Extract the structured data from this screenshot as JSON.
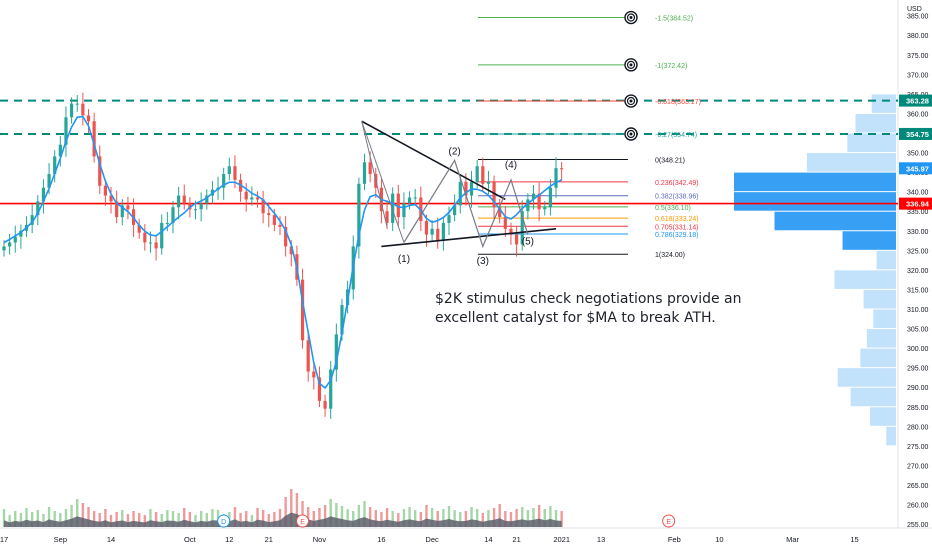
{
  "chart_data": {
    "type": "candlestick",
    "currency": "USD",
    "y_axis": {
      "ylim": [
        254,
        389
      ],
      "ticks": [
        255,
        260,
        265,
        270,
        275,
        280,
        285,
        290,
        295,
        300,
        305,
        310,
        315,
        320,
        325,
        330,
        335,
        340,
        345,
        350,
        355,
        360,
        365,
        370,
        375,
        380,
        385
      ],
      "tick_labels": [
        "255.00",
        "260.00",
        "265.00",
        "270.00",
        "275.00",
        "280.00",
        "285.00",
        "290.00",
        "295.00",
        "300.00",
        "305.00",
        "310.00",
        "315.00",
        "320.00",
        "325.00",
        "330.00",
        "335.00",
        "340.00",
        "345.00",
        "350.00",
        "355.00",
        "360.00",
        "365.00",
        "370.00",
        "375.00",
        "380.00",
        "385.00"
      ]
    },
    "x_axis": {
      "xlim": [
        0,
        158
      ],
      "ticks": [
        {
          "label": "17",
          "t": 0
        },
        {
          "label": "Sep",
          "t": 10
        },
        {
          "label": "14",
          "t": 19
        },
        {
          "label": "Oct",
          "t": 33
        },
        {
          "label": "12",
          "t": 40
        },
        {
          "label": "21",
          "t": 47
        },
        {
          "label": "Nov",
          "t": 56
        },
        {
          "label": "16",
          "t": 67
        },
        {
          "label": "Dec",
          "t": 76
        },
        {
          "label": "14",
          "t": 86
        },
        {
          "label": "21",
          "t": 91
        },
        {
          "label": "2021",
          "t": 99
        },
        {
          "label": "13",
          "t": 106
        },
        {
          "label": "Feb",
          "t": 119
        },
        {
          "label": "10",
          "t": 127
        },
        {
          "label": "Mar",
          "t": 140
        },
        {
          "label": "15",
          "t": 151
        }
      ]
    },
    "price_series": {
      "name": "MA",
      "close": [
        326.0,
        327.0,
        328.5,
        330.0,
        331.5,
        334.0,
        337.5,
        341.0,
        344.5,
        349.0,
        352.0,
        359.0,
        362.5,
        362.5,
        359.5,
        358.0,
        349.0,
        341.5,
        339.0,
        337.5,
        333.5,
        336.5,
        335.5,
        331.5,
        329.5,
        327.0,
        327.0,
        325.5,
        332.0,
        332.0,
        336.0,
        339.0,
        337.0,
        335.5,
        335.5,
        337.0,
        339.0,
        340.5,
        341.0,
        344.5,
        346.5,
        343.0,
        340.0,
        338.0,
        338.5,
        338.0,
        334.5,
        334.0,
        331.5,
        331.0,
        326.0,
        324.0,
        317.5,
        302.0,
        294.0,
        292.5,
        286.5,
        284.5,
        294.5,
        303.5,
        311.0,
        315.0,
        326.0,
        342.0,
        347.5,
        344.5,
        341.0,
        335.0,
        332.0,
        339.5,
        333.5,
        337.0,
        338.5,
        338.5,
        332.5,
        329.0,
        330.5,
        327.5,
        332.0,
        334.0,
        336.5,
        342.5,
        339.0,
        342.5,
        346.5,
        342.0,
        342.5,
        336.0,
        333.5,
        330.5,
        329.0,
        326.5,
        335.0,
        338.0,
        339.5,
        335.5,
        336.0,
        341.0,
        346.0,
        345.97
      ],
      "ma": [
        327.0,
        327.8,
        328.7,
        329.6,
        330.8,
        332.2,
        334.5,
        337.5,
        340.8,
        344.6,
        348.5,
        352.9,
        356.5,
        359.0,
        359.2,
        356.8,
        352.1,
        347.1,
        342.7,
        339.4,
        337.0,
        336.0,
        334.9,
        333.3,
        331.4,
        329.9,
        328.9,
        328.7,
        329.8,
        331.0,
        332.3,
        333.5,
        334.6,
        336.0,
        337.0,
        337.6,
        338.4,
        339.6,
        340.7,
        341.7,
        342.4,
        342.4,
        341.7,
        340.7,
        339.6,
        338.9,
        337.9,
        336.2,
        334.5,
        332.5,
        330.1,
        326.4,
        320.6,
        312.0,
        304.1,
        296.3,
        291.0,
        289.8,
        291.8,
        296.4,
        303.9,
        312.1,
        320.9,
        328.9,
        335.3,
        338.7,
        339.2,
        338.0,
        337.5,
        337.0,
        336.1,
        335.9,
        336.5,
        336.7,
        335.3,
        333.1,
        332.2,
        332.6,
        333.4,
        334.7,
        336.5,
        338.4,
        339.7,
        340.7,
        340.6,
        340.1,
        339.1,
        337.4,
        335.6,
        333.6,
        333.0,
        334.1,
        335.7,
        337.0,
        338.1,
        339.1,
        340.3,
        341.4,
        342.3,
        343.0
      ]
    },
    "volume": {
      "values": [
        18,
        12,
        16,
        14,
        19,
        15,
        17,
        13,
        20,
        16,
        14,
        18,
        22,
        28,
        24,
        20,
        16,
        14,
        18,
        12,
        15,
        17,
        13,
        16,
        14,
        12,
        18,
        15,
        13,
        17,
        16,
        14,
        19,
        15,
        12,
        16,
        14,
        18,
        17,
        13,
        15,
        20,
        14,
        16,
        12,
        19,
        17,
        13,
        15,
        18,
        30,
        38,
        34,
        26,
        20,
        16,
        19,
        22,
        28,
        24,
        21,
        18,
        16,
        22,
        26,
        20,
        17,
        15,
        19,
        16,
        14,
        18,
        20,
        17,
        15,
        22,
        19,
        16,
        18,
        21,
        17,
        15,
        16,
        20,
        18,
        14,
        17,
        19,
        23,
        16,
        15,
        18,
        20,
        17,
        19,
        22,
        18,
        21,
        17,
        16
      ],
      "ylim": [
        0,
        100
      ]
    },
    "horizontal_levels": [
      {
        "price": 363.28,
        "label": "363.28",
        "style": "dashed",
        "color": "#00897b"
      },
      {
        "price": 354.75,
        "label": "354.75",
        "style": "dashed",
        "color": "#00897b"
      },
      {
        "price": 336.94,
        "label": "336.94",
        "style": "solid",
        "color": "#ff0000"
      }
    ],
    "last_price": {
      "price": 345.97,
      "label": "345.97",
      "color": "#2196f3"
    },
    "fib_levels": [
      {
        "ratio": "-1.5",
        "price": 384.52,
        "label": "-1.5(384.52)",
        "color": "#4caf50"
      },
      {
        "ratio": "-1",
        "price": 372.42,
        "label": "-1(372.42)",
        "color": "#4caf50"
      },
      {
        "ratio": "-0.618",
        "price": 363.17,
        "label": "-0.618(363.17)",
        "color": "#f44336"
      },
      {
        "ratio": "-0.27",
        "price": 354.74,
        "label": "-0.27(354.74)",
        "color": "#26a69a"
      },
      {
        "ratio": "0",
        "price": 348.21,
        "label": "0(348.21)",
        "color": "#131722"
      },
      {
        "ratio": "0.236",
        "price": 342.49,
        "label": "0.236(342.49)",
        "color": "#f23645"
      },
      {
        "ratio": "0.382",
        "price": 338.96,
        "label": "0.382(338.96)",
        "color": "#5b6bc0"
      },
      {
        "ratio": "0.5",
        "price": 336.1,
        "label": "0.5(336.10)",
        "color": "#4caf50"
      },
      {
        "ratio": "0.618",
        "price": 333.24,
        "label": "0.618(333.24)",
        "color": "#ff9800"
      },
      {
        "ratio": "0.705",
        "price": 331.14,
        "label": "0.705(331.14)",
        "color": "#f23645"
      },
      {
        "ratio": "0.786",
        "price": 329.18,
        "label": "0.786(329.18)",
        "color": "#2196f3"
      },
      {
        "ratio": "1",
        "price": 324.0,
        "label": "1(324.00)",
        "color": "#131722"
      }
    ],
    "wave_labels": [
      {
        "label": "(1)",
        "t": 71,
        "price": 322
      },
      {
        "label": "(2)",
        "t": 80,
        "price": 349.5
      },
      {
        "label": "(3)",
        "t": 85,
        "price": 321.5
      },
      {
        "label": "(4)",
        "t": 90,
        "price": 346
      },
      {
        "label": "(5)",
        "t": 93,
        "price": 326.5
      }
    ],
    "event_markers": [
      {
        "label": "D",
        "t": 39
      },
      {
        "label": "E",
        "t": 53
      },
      {
        "label": "E",
        "t": 118
      }
    ],
    "volume_profile": [
      {
        "price": 362.5,
        "volume": 15
      },
      {
        "price": 357.5,
        "volume": 25
      },
      {
        "price": 352.5,
        "volume": 30
      },
      {
        "price": 347.5,
        "volume": 55
      },
      {
        "price": 342.5,
        "volume": 100
      },
      {
        "price": 337.5,
        "volume": 100
      },
      {
        "price": 332.5,
        "volume": 75
      },
      {
        "price": 327.5,
        "volume": 33
      },
      {
        "price": 322.5,
        "volume": 12
      },
      {
        "price": 317.5,
        "volume": 38
      },
      {
        "price": 312.5,
        "volume": 20
      },
      {
        "price": 307.5,
        "volume": 14
      },
      {
        "price": 302.5,
        "volume": 18
      },
      {
        "price": 297.5,
        "volume": 22
      },
      {
        "price": 292.5,
        "volume": 36
      },
      {
        "price": 287.5,
        "volume": 28
      },
      {
        "price": 282.5,
        "volume": 16
      },
      {
        "price": 277.5,
        "volume": 6
      }
    ],
    "annotation": "$2K stimulus check negotiations provide an excellent catalyst for $MA to break ATH."
  }
}
